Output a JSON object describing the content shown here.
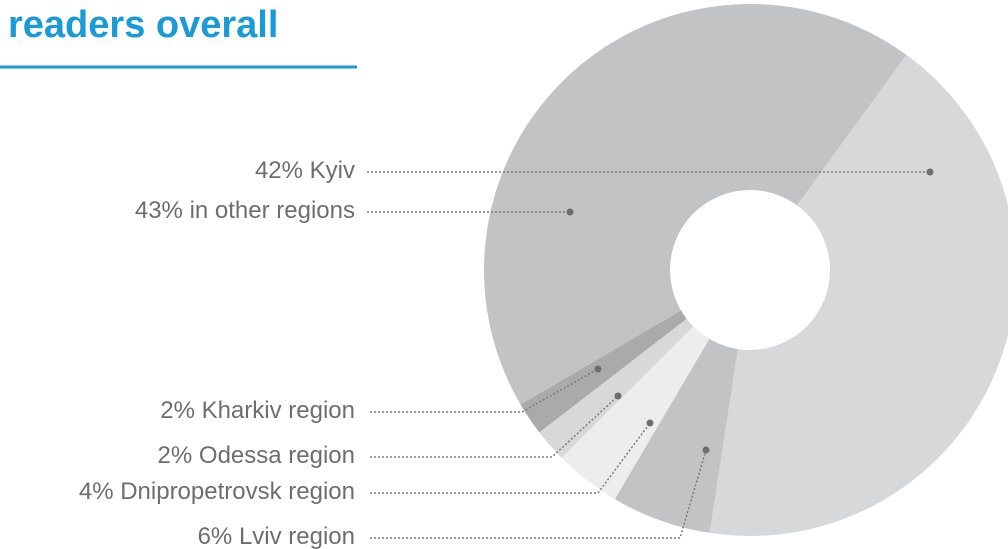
{
  "chart_data": {
    "type": "donut",
    "title": "readers overall",
    "categories": [
      "Kyiv",
      "in other regions",
      "Kharkiv region",
      "Odessa region",
      "Dnipropetrovsk region",
      "Lviv region"
    ],
    "values": [
      42,
      43,
      2,
      2,
      4,
      6
    ],
    "value_labels": [
      "42%",
      "43%",
      "2%",
      "2%",
      "4%",
      "6%"
    ],
    "colors": [
      "#d6d8d9",
      "#c2c3c5",
      "#a9aaac",
      "#d6d8d9",
      "#ededee",
      "#c2c3c5"
    ]
  }
}
